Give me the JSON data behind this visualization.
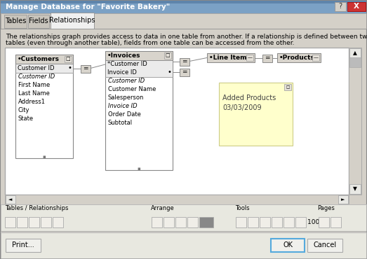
{
  "title": "Manage Database for \"Favorite Bakery\"",
  "tab_labels": [
    "Tables",
    "Fields",
    "Relationships"
  ],
  "active_tab": "Relationships",
  "desc_line1": "The relationships graph provides access to data in one table from another. If a relationship is defined between two",
  "desc_line2": "tables (even through another table), fields from one table can be accessed from the other.",
  "bg_color": "#E8E8E8",
  "titlebar_color": "#7AA0C4",
  "canvas_bg": "#FFFFFF",
  "note_bg": "#FFFFCC",
  "customers_fields": [
    "Customer ID",
    "First Name",
    "Last Name",
    "Address1",
    "City",
    "State"
  ],
  "customers_italic": [
    "Customer ID"
  ],
  "invoices_key": [
    "*Customer ID",
    "Invoice ID"
  ],
  "invoices_fields": [
    "Customer ID",
    "Customer Name",
    "Salesperson",
    "Invoice ID",
    "Order Date",
    "Subtotal"
  ],
  "invoices_italic": [
    "Customer ID",
    "Invoice ID"
  ]
}
